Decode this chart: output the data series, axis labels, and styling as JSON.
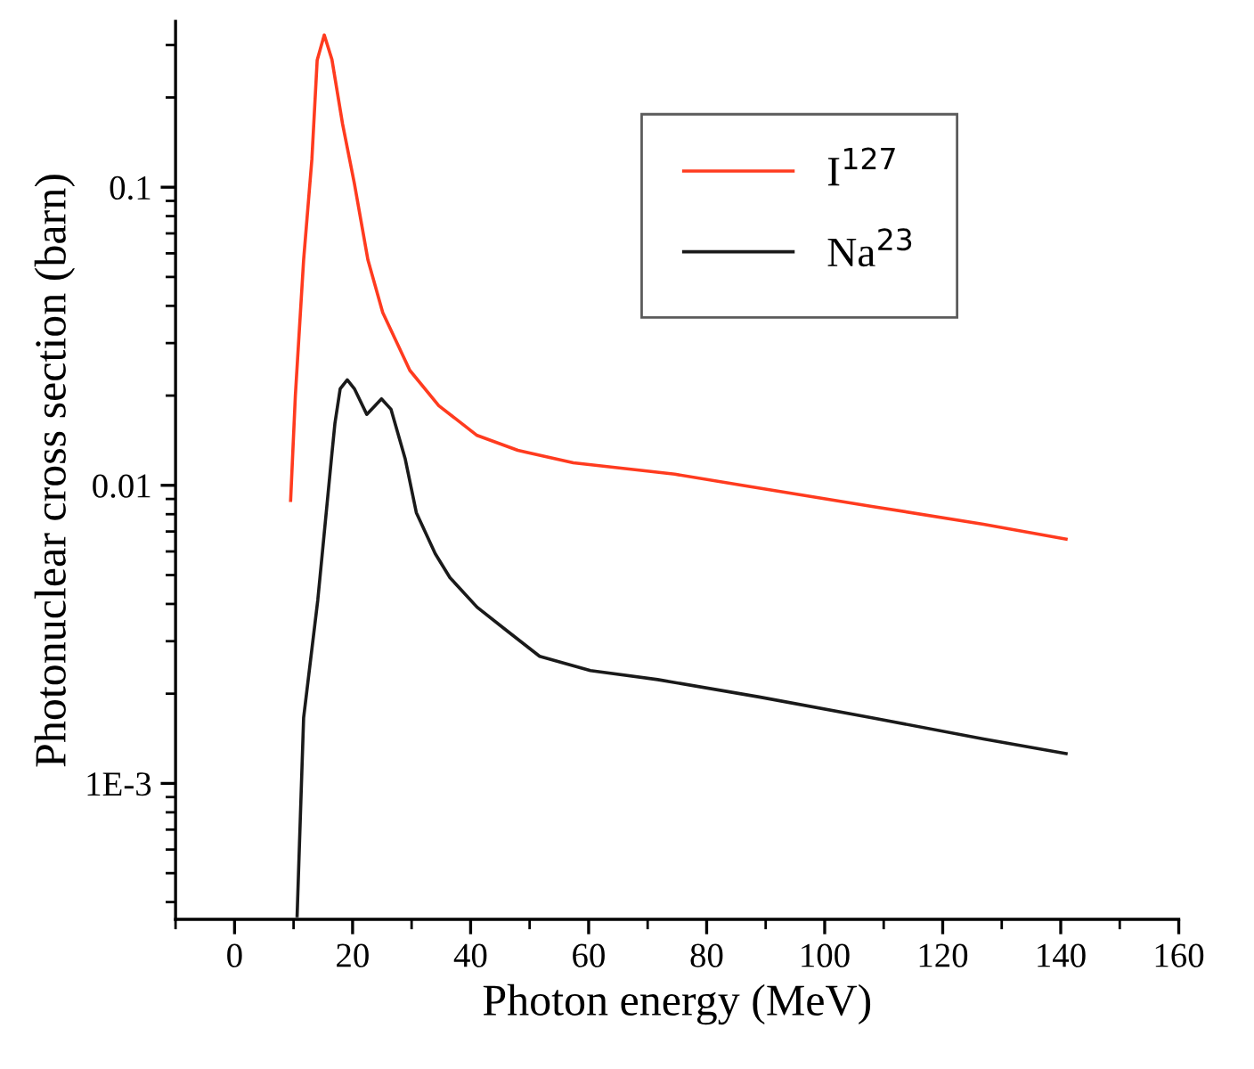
{
  "chart_data": {
    "type": "line",
    "xlabel": "Photon energy (MeV)",
    "ylabel": "Photonuclear cross section (barn)",
    "log": "y",
    "legend": "top right",
    "xlim": [
      -10,
      160
    ],
    "xticks": [
      0,
      20,
      40,
      60,
      80,
      100,
      120,
      140,
      160
    ],
    "ylim": [
      0.00035,
      0.36
    ],
    "yticks": [
      {
        "value": 0.001,
        "label": "1E-3"
      },
      0.01,
      0.1
    ],
    "series": [
      {
        "name": "I$^{127}$",
        "color": "#ff3b1f",
        "x": [
          9.5,
          10.3,
          11.7,
          13.1,
          14.0,
          15.2,
          16.5,
          18.3,
          20.3,
          22.6,
          25.1,
          29.7,
          34.6,
          41.1,
          48,
          57.4,
          74.6,
          86,
          108,
          126.9,
          140.9
        ],
        "values": [
          0.0089,
          0.02,
          0.057,
          0.124,
          0.267,
          0.324,
          0.268,
          0.163,
          0.103,
          0.057,
          0.038,
          0.0243,
          0.0185,
          0.0147,
          0.0131,
          0.0119,
          0.0109,
          0.01,
          0.0085,
          0.0074,
          0.0066
        ]
      },
      {
        "name": "Na$^{23}$",
        "color": "#1a1a1a",
        "x": [
          10.6,
          11.7,
          14.1,
          15.1,
          16.5,
          17.0,
          17.9,
          19.1,
          20.3,
          22.4,
          24.9,
          26.5,
          28.9,
          30.8,
          34.0,
          36.5,
          41.1,
          46,
          51.7,
          60.3,
          71.7,
          88.9,
          108,
          126.9,
          140.9
        ],
        "values": [
          0.00036,
          0.00166,
          0.00412,
          0.0066,
          0.0128,
          0.0161,
          0.0211,
          0.0226,
          0.0211,
          0.0173,
          0.0195,
          0.018,
          0.0123,
          0.0081,
          0.0059,
          0.0049,
          0.0039,
          0.00327,
          0.00267,
          0.00239,
          0.00223,
          0.00195,
          0.00166,
          0.00141,
          0.00126
        ]
      }
    ]
  }
}
